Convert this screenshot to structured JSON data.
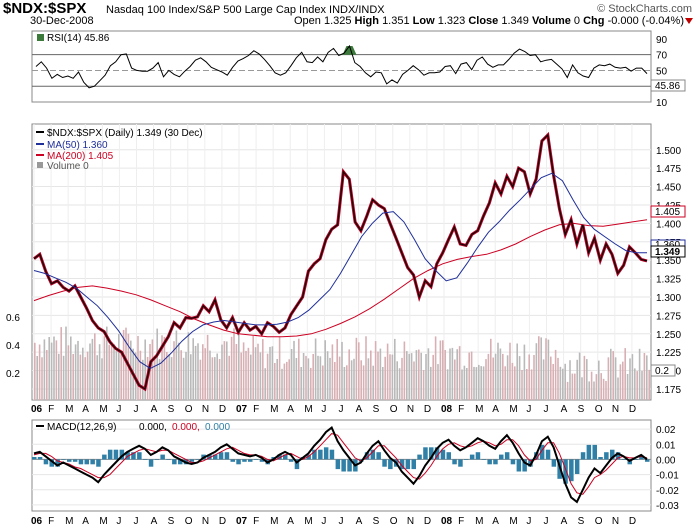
{
  "header": {
    "symbol": "$NDX:$SPX",
    "description": "Nasdaq 100 Index/S&P 500 Large Cap Index  INDX/INDX",
    "date": "30-Dec-2008",
    "brand": "© StockCharts.com",
    "open_label": "Open",
    "open": "1.325",
    "high_label": "High",
    "high": "1.351",
    "low_label": "Low",
    "low": "1.323",
    "close_label": "Close",
    "close": "1.349",
    "volume_label": "Volume",
    "volume": "0",
    "chg_label": "Chg",
    "chg": "-0.000 (-0.04%)"
  },
  "colors": {
    "price": "#000000",
    "ma50": "#1f2f9a",
    "ma200": "#cc0022",
    "price_fill": "#aa0022",
    "volume": "#d8b0b4",
    "macd_hist": "#2f7fa6",
    "rsi_fill": "#3c7a3c"
  },
  "chart_data": [
    {
      "type": "line",
      "title": "RSI(14) 45.86",
      "legend": "RSI(14) 45.86",
      "ylim": [
        10,
        100
      ],
      "y_ticks": [
        "90",
        "70",
        "50",
        "30",
        "10"
      ],
      "overbought": 70,
      "oversold": 30,
      "current_label": "45.86",
      "series": [
        {
          "name": "RSI(14)",
          "values": [
            55,
            61,
            53,
            40,
            45,
            41,
            43,
            40,
            48,
            35,
            28,
            30,
            37,
            44,
            56,
            61,
            70,
            71,
            53,
            50,
            49,
            49,
            53,
            60,
            42,
            50,
            45,
            42,
            49,
            55,
            63,
            66,
            61,
            54,
            51,
            48,
            44,
            54,
            62,
            65,
            69,
            75,
            71,
            64,
            56,
            47,
            44,
            47,
            56,
            66,
            73,
            61,
            60,
            67,
            61,
            73,
            78,
            69,
            72,
            81,
            60,
            55,
            47,
            42,
            48,
            47,
            33,
            38,
            34,
            45,
            50,
            56,
            51,
            44,
            47,
            47,
            48,
            55,
            56,
            46,
            58,
            60,
            51,
            63,
            67,
            58,
            54,
            57,
            57,
            64,
            72,
            77,
            74,
            69,
            70,
            61,
            63,
            64,
            58,
            52,
            41,
            57,
            47,
            43,
            41,
            53,
            57,
            56,
            58,
            54,
            53,
            54,
            49,
            53,
            53,
            46
          ]
        }
      ]
    },
    {
      "type": "line",
      "title": "$NDX:$SPX (Daily) 1.349 (30 Dec)",
      "x_tick_labels": [
        "06",
        "F",
        "M",
        "A",
        "M",
        "J",
        "J",
        "A",
        "S",
        "O",
        "N",
        "D",
        "07",
        "F",
        "M",
        "A",
        "M",
        "J",
        "J",
        "A",
        "S",
        "O",
        "N",
        "D",
        "08",
        "F",
        "M",
        "A",
        "M",
        "J",
        "J",
        "A",
        "S",
        "O",
        "N",
        "D"
      ],
      "ylim": [
        1.16,
        1.535
      ],
      "y_ticks": [
        "1.500",
        "1.475",
        "1.450",
        "1.425",
        "1.400",
        "1.375",
        "1.350",
        "1.325",
        "1.300",
        "1.275",
        "1.250",
        "1.225",
        "1.200",
        "1.175"
      ],
      "volume_ticks": [
        "0.6",
        "0.4",
        "0.2"
      ],
      "last_value_labels": [
        "1.405",
        "1.360",
        "1.349",
        "0.2"
      ],
      "legend": [
        "$NDX:$SPX (Daily) 1.349 (30 Dec)",
        "MA(50) 1.360",
        "MA(200) 1.405",
        "Volume 0"
      ],
      "series": [
        {
          "name": "$NDX:$SPX",
          "values": [
            1.352,
            1.358,
            1.335,
            1.318,
            1.322,
            1.313,
            1.308,
            1.315,
            1.3,
            1.285,
            1.268,
            1.258,
            1.253,
            1.239,
            1.23,
            1.225,
            1.21,
            1.195,
            1.18,
            1.175,
            1.212,
            1.22,
            1.233,
            1.246,
            1.265,
            1.258,
            1.272,
            1.271,
            1.273,
            1.288,
            1.28,
            1.296,
            1.269,
            1.258,
            1.272,
            1.252,
            1.265,
            1.255,
            1.26,
            1.25,
            1.265,
            1.26,
            1.252,
            1.258,
            1.276,
            1.288,
            1.3,
            1.335,
            1.345,
            1.352,
            1.378,
            1.392,
            1.398,
            1.47,
            1.46,
            1.402,
            1.39,
            1.41,
            1.432,
            1.425,
            1.42,
            1.4,
            1.38,
            1.36,
            1.34,
            1.33,
            1.3,
            1.322,
            1.314,
            1.345,
            1.36,
            1.378,
            1.395,
            1.372,
            1.37,
            1.385,
            1.39,
            1.41,
            1.428,
            1.455,
            1.44,
            1.464,
            1.45,
            1.475,
            1.47,
            1.44,
            1.46,
            1.512,
            1.52,
            1.465,
            1.42,
            1.385,
            1.405,
            1.372,
            1.398,
            1.36,
            1.38,
            1.35,
            1.372,
            1.358,
            1.332,
            1.343,
            1.368,
            1.36,
            1.351,
            1.349
          ]
        },
        {
          "name": "MA(50)",
          "values": [
            1.336,
            1.332,
            1.326,
            1.32,
            1.312,
            1.3,
            1.288,
            1.272,
            1.254,
            1.232,
            1.212,
            1.203,
            1.21,
            1.224,
            1.24,
            1.253,
            1.262,
            1.266,
            1.268,
            1.266,
            1.264,
            1.262,
            1.262,
            1.263,
            1.266,
            1.272,
            1.282,
            1.296,
            1.31,
            1.332,
            1.357,
            1.382,
            1.4,
            1.414,
            1.416,
            1.402,
            1.378,
            1.352,
            1.336,
            1.322,
            1.326,
            1.346,
            1.368,
            1.388,
            1.402,
            1.418,
            1.432,
            1.447,
            1.462,
            1.468,
            1.458,
            1.432,
            1.408,
            1.392,
            1.382,
            1.372,
            1.363,
            1.36,
            1.36
          ]
        },
        {
          "name": "MA(200)",
          "values": [
            1.295,
            1.302,
            1.308,
            1.313,
            1.315,
            1.312,
            1.308,
            1.303,
            1.296,
            1.288,
            1.28,
            1.27,
            1.262,
            1.255,
            1.25,
            1.248,
            1.246,
            1.246,
            1.247,
            1.25,
            1.256,
            1.264,
            1.273,
            1.284,
            1.297,
            1.311,
            1.325,
            1.336,
            1.345,
            1.351,
            1.355,
            1.358,
            1.364,
            1.372,
            1.382,
            1.391,
            1.398,
            1.4,
            1.397,
            1.396,
            1.399,
            1.402,
            1.405
          ]
        }
      ]
    },
    {
      "type": "line",
      "title": "MACD(12,26,9) 0.000, 0.000, 0.000",
      "legend_label": "MACD(12,26,9)",
      "legend_values": [
        "0.000,",
        "0.000,",
        "0.000"
      ],
      "ylim": [
        -0.034,
        0.026
      ],
      "y_ticks": [
        "0.02",
        "0.01",
        "0.00",
        "-0.01",
        "-0.02",
        "-0.03"
      ],
      "x_tick_labels": [
        "06",
        "F",
        "M",
        "A",
        "M",
        "J",
        "J",
        "A",
        "S",
        "O",
        "N",
        "D",
        "07",
        "F",
        "M",
        "A",
        "M",
        "J",
        "J",
        "A",
        "S",
        "O",
        "N",
        "D",
        "08",
        "F",
        "M",
        "A",
        "M",
        "J",
        "J",
        "A",
        "S",
        "O",
        "N",
        "D"
      ],
      "series": [
        {
          "name": "MACD",
          "values": [
            0.004,
            0.005,
            0.002,
            -0.001,
            -0.004,
            -0.002,
            -0.004,
            -0.006,
            -0.008,
            -0.01,
            -0.012,
            -0.015,
            -0.01,
            -0.006,
            -0.002,
            0.002,
            0.005,
            0.007,
            0.009,
            0.007,
            0.003,
            0.005,
            0.008,
            0.006,
            0.002,
            0.0,
            -0.002,
            -0.003,
            -0.002,
            0.001,
            0.003,
            0.005,
            0.008,
            0.01,
            0.007,
            0.004,
            0.003,
            0.002,
            0.003,
            0.001,
            -0.002,
            0.0,
            0.003,
            0.005,
            0.003,
            -0.002,
            0.001,
            0.004,
            0.009,
            0.013,
            0.018,
            0.021,
            0.012,
            0.006,
            0.001,
            -0.004,
            -0.002,
            0.004,
            0.009,
            0.012,
            0.006,
            0.001,
            -0.002,
            -0.008,
            -0.012,
            -0.016,
            -0.011,
            -0.004,
            0.001,
            0.007,
            0.011,
            0.013,
            0.009,
            0.006,
            0.008,
            0.011,
            0.014,
            0.012,
            0.009,
            0.007,
            0.012,
            0.016,
            0.011,
            0.004,
            -0.002,
            -0.004,
            0.003,
            0.012,
            0.015,
            0.008,
            -0.004,
            -0.016,
            -0.025,
            -0.028,
            -0.02,
            -0.012,
            -0.006,
            -0.009,
            -0.004,
            0.001,
            0.004,
            0.002,
            -0.001,
            0.001,
            0.003,
            0.0
          ]
        },
        {
          "name": "Signal",
          "values": [
            0.003,
            0.004,
            0.004,
            0.002,
            -0.001,
            -0.002,
            -0.003,
            -0.005,
            -0.006,
            -0.008,
            -0.01,
            -0.012,
            -0.012,
            -0.01,
            -0.006,
            -0.002,
            0.002,
            0.004,
            0.006,
            0.007,
            0.006,
            0.005,
            0.006,
            0.006,
            0.004,
            0.002,
            0.0,
            -0.002,
            -0.002,
            -0.001,
            0.001,
            0.003,
            0.005,
            0.007,
            0.008,
            0.006,
            0.004,
            0.003,
            0.003,
            0.002,
            0.0,
            -0.001,
            0.001,
            0.003,
            0.004,
            0.002,
            0.0,
            0.002,
            0.005,
            0.009,
            0.013,
            0.017,
            0.016,
            0.011,
            0.006,
            0.001,
            -0.001,
            0.001,
            0.005,
            0.009,
            0.009,
            0.005,
            0.001,
            -0.004,
            -0.008,
            -0.012,
            -0.013,
            -0.009,
            -0.004,
            0.002,
            0.007,
            0.01,
            0.011,
            0.009,
            0.008,
            0.009,
            0.011,
            0.012,
            0.011,
            0.009,
            0.01,
            0.013,
            0.013,
            0.009,
            0.003,
            -0.001,
            0.0,
            0.006,
            0.011,
            0.011,
            0.004,
            -0.006,
            -0.016,
            -0.022,
            -0.023,
            -0.018,
            -0.012,
            -0.01,
            -0.007,
            -0.003,
            0.001,
            0.002,
            0.001,
            0.001,
            0.002,
            0.001
          ]
        }
      ]
    }
  ]
}
